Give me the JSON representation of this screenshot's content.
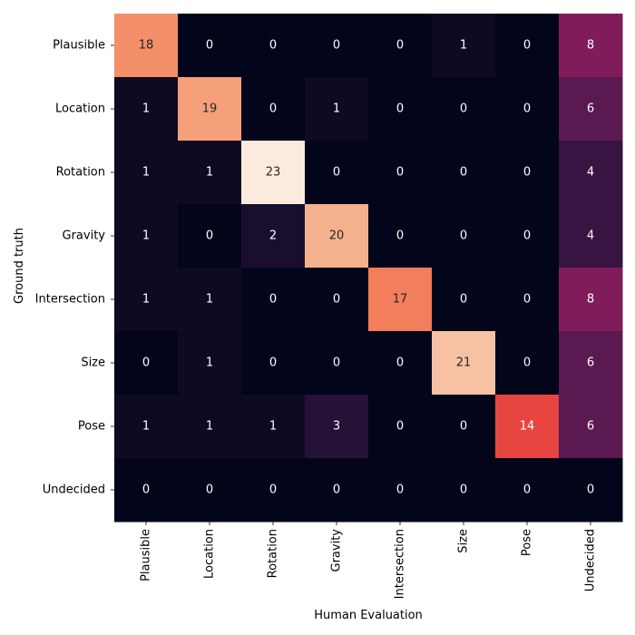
{
  "chart_data": {
    "type": "heatmap",
    "title": "",
    "xlabel": "Human Evaluation",
    "ylabel": "Ground truth",
    "x_categories": [
      "Plausible",
      "Location",
      "Rotation",
      "Gravity",
      "Intersection",
      "Size",
      "Pose",
      "Undecided"
    ],
    "y_categories": [
      "Plausible",
      "Location",
      "Rotation",
      "Gravity",
      "Intersection",
      "Size",
      "Pose",
      "Undecided"
    ],
    "matrix": [
      [
        18,
        0,
        0,
        0,
        0,
        1,
        0,
        8
      ],
      [
        1,
        19,
        0,
        1,
        0,
        0,
        0,
        6
      ],
      [
        1,
        1,
        23,
        0,
        0,
        0,
        0,
        4
      ],
      [
        1,
        0,
        2,
        20,
        0,
        0,
        0,
        4
      ],
      [
        1,
        1,
        0,
        0,
        17,
        0,
        0,
        8
      ],
      [
        0,
        1,
        0,
        0,
        0,
        21,
        0,
        6
      ],
      [
        1,
        1,
        1,
        3,
        0,
        0,
        14,
        6
      ],
      [
        0,
        0,
        0,
        0,
        0,
        0,
        0,
        0
      ]
    ],
    "value_range": [
      0,
      23
    ],
    "colormap": "rocket",
    "colorbar": false,
    "annotations": true
  }
}
